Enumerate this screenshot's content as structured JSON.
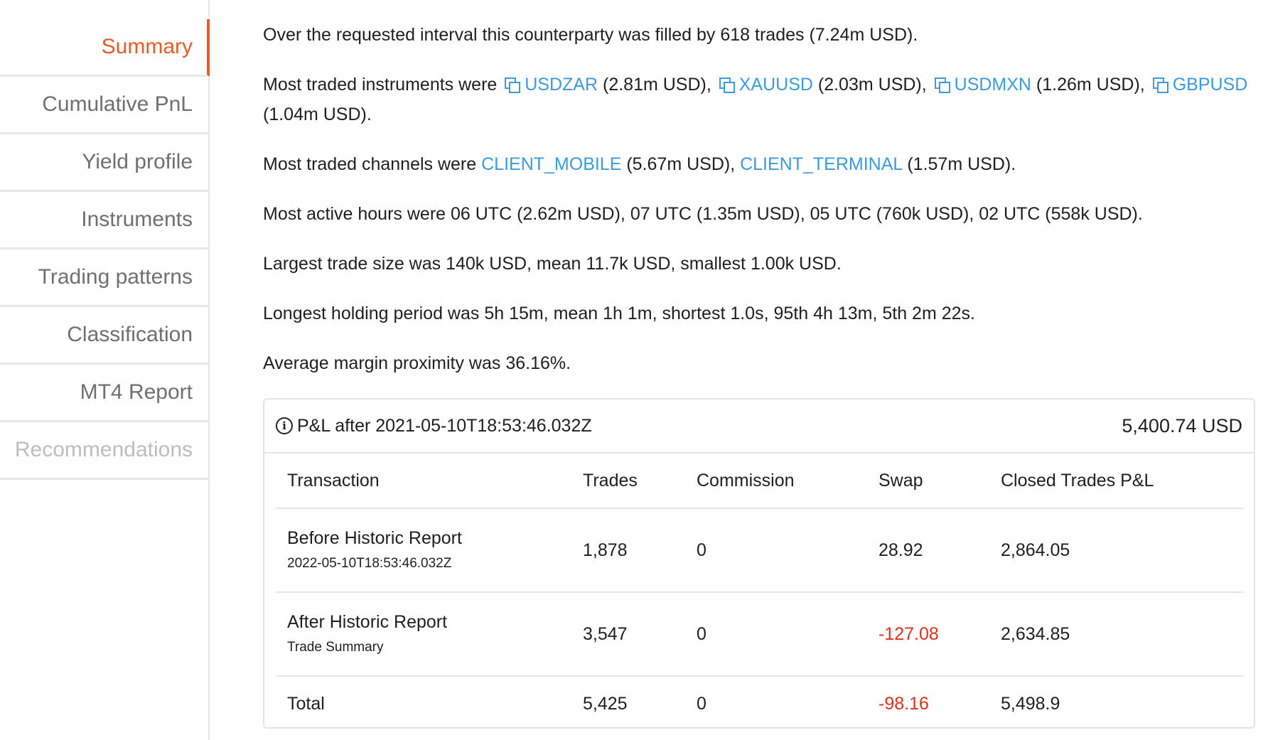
{
  "sidebar": {
    "items": [
      {
        "label": "Summary",
        "state": "active"
      },
      {
        "label": "Cumulative PnL",
        "state": "normal"
      },
      {
        "label": "Yield profile",
        "state": "normal"
      },
      {
        "label": "Instruments",
        "state": "normal"
      },
      {
        "label": "Trading patterns",
        "state": "normal"
      },
      {
        "label": "Classification",
        "state": "normal"
      },
      {
        "label": "MT4 Report",
        "state": "normal"
      },
      {
        "label": "Recommendations",
        "state": "disabled"
      }
    ]
  },
  "summary": {
    "fills": "Over the requested interval this counterparty was filled by 618 trades (7.24m USD).",
    "instruments_intro": "Most traded instruments were ",
    "instruments": [
      {
        "name": "USDZAR",
        "amount": " (2.81m USD), "
      },
      {
        "name": "XAUUSD",
        "amount": " (2.03m USD), "
      },
      {
        "name": "USDMXN",
        "amount": " (1.26m USD), "
      },
      {
        "name": "GBPUSD",
        "amount": " (1.04m USD)."
      }
    ],
    "channels_intro": "Most traded channels were ",
    "channels": [
      {
        "name": "CLIENT_MOBILE",
        "amount": " (5.67m USD), "
      },
      {
        "name": "CLIENT_TERMINAL",
        "amount": " (1.57m USD)."
      }
    ],
    "hours": "Most active hours were 06 UTC (2.62m USD), 07 UTC (1.35m USD), 05 UTC (760k USD), 02 UTC (558k USD).",
    "trade_size": "Largest trade size was 140k USD, mean 11.7k USD, smallest 1.00k USD.",
    "holding": "Longest holding period was 5h 15m, mean 1h 1m, shortest 1.0s, 95th 4h 13m, 5th 2m 22s.",
    "margin": "Average margin proximity was 36.16%."
  },
  "pnl": {
    "title": "P&L after 2021-05-10T18:53:46.032Z",
    "total": "5,400.74 USD",
    "columns": [
      "Transaction",
      "Trades",
      "Commission",
      "Swap",
      "Closed Trades P&L"
    ],
    "rows": [
      {
        "label": "Before Historic Report",
        "sub": "2022-05-10T18:53:46.032Z",
        "trades": "1,878",
        "commission": "0",
        "swap": "28.92",
        "closed": "2,864.05"
      },
      {
        "label": "After Historic Report",
        "sub": "Trade Summary",
        "trades": "3,547",
        "commission": "0",
        "swap": "-127.08",
        "closed": "2,634.85"
      }
    ],
    "total_row": {
      "label": "Total",
      "trades": "5,425",
      "commission": "0",
      "swap": "-98.16",
      "closed": "5,498.9"
    }
  },
  "colors": {
    "accent": "#ec5a24",
    "link": "#3a9be0",
    "negative": "#e0301e"
  }
}
